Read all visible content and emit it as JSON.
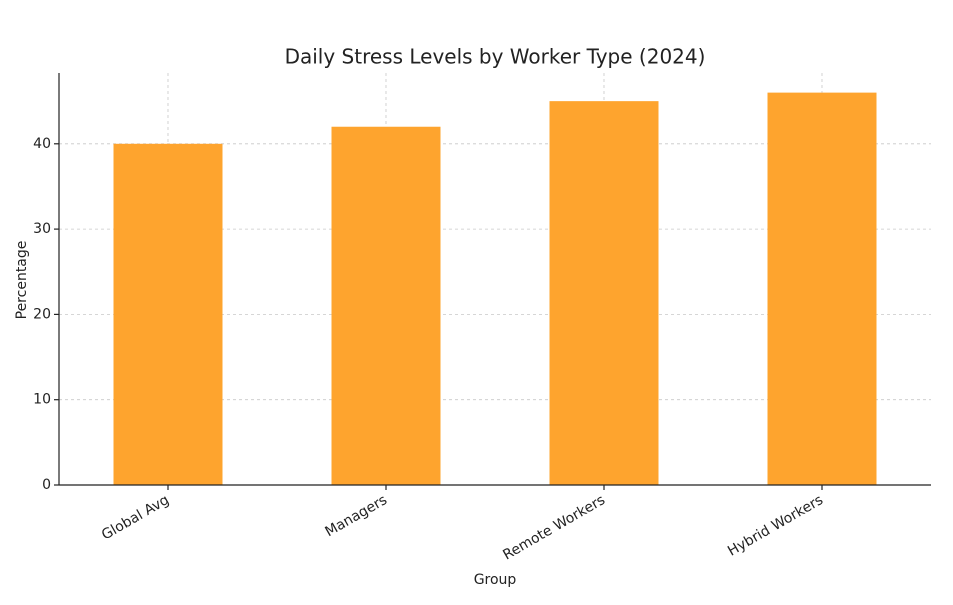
{
  "chart_data": {
    "type": "bar",
    "title": "Daily Stress Levels by Worker Type (2024)",
    "x_label": "Group",
    "y_label": "Percentage",
    "categories": [
      "Global Avg",
      "Managers",
      "Remote Workers",
      "Hybrid Workers"
    ],
    "values": [
      40,
      42,
      45,
      46
    ],
    "color": "#fea42e",
    "ylim": [
      0,
      48.3
    ],
    "yticks": [
      0,
      10,
      20,
      30,
      40
    ],
    "grid": true
  }
}
